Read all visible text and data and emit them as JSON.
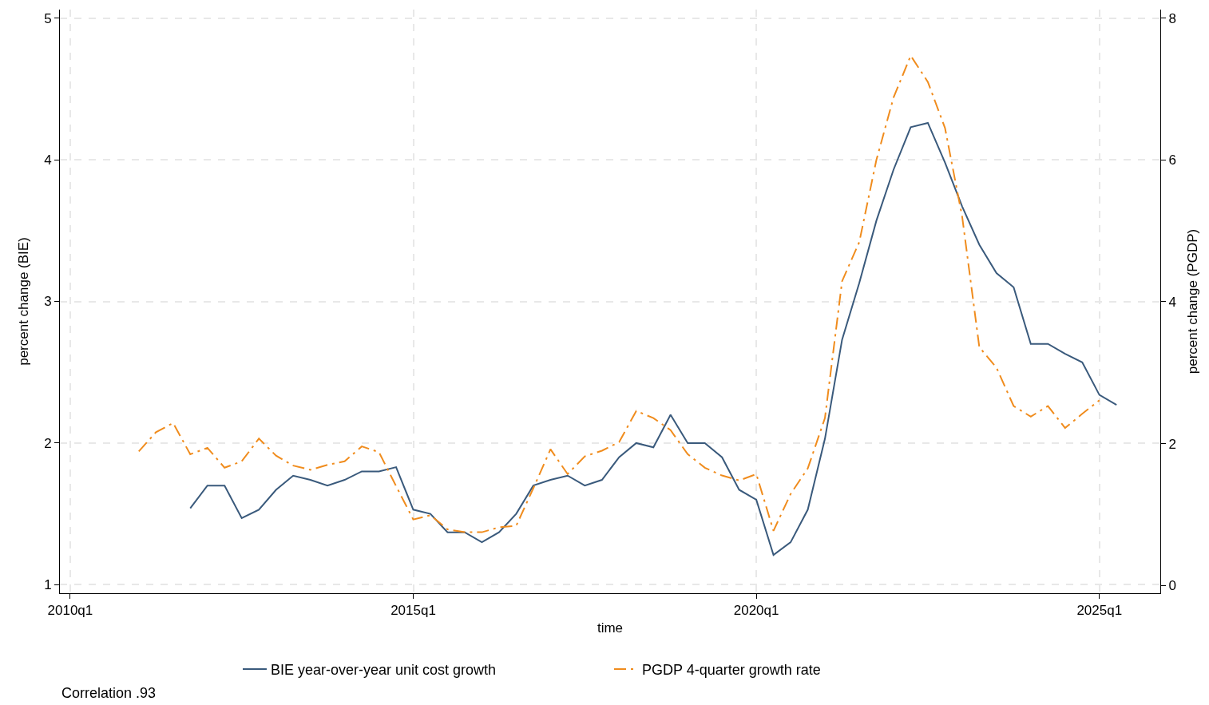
{
  "chart_data": {
    "type": "line",
    "xlabel": "time",
    "ylabel": "percent change (BIE)",
    "y2label": "percent change (PGDP)",
    "annotations": [
      "Correlation .93"
    ],
    "categories": [
      "2010q1",
      null,
      null,
      null,
      null,
      null,
      null,
      null,
      null,
      null,
      null,
      null,
      null,
      null,
      null,
      null,
      null,
      null,
      null,
      null,
      "2015q1",
      null,
      null,
      null,
      null,
      null,
      null,
      null,
      null,
      null,
      null,
      null,
      null,
      null,
      null,
      null,
      null,
      null,
      null,
      null,
      "2020q1",
      null,
      null,
      null,
      null,
      null,
      null,
      null,
      null,
      null,
      null,
      null,
      null,
      null,
      null,
      null,
      null,
      null,
      null,
      null,
      "2025q1",
      null,
      null,
      null
    ],
    "ylim": [
      0.94,
      5.06
    ],
    "yticks": [
      1,
      2,
      3,
      4,
      5
    ],
    "y2lim": [
      -0.11,
      8.12
    ],
    "y2ticks": [
      0,
      2,
      4,
      6,
      8
    ],
    "grid": true,
    "legend": "bottom",
    "series": [
      {
        "name": "BIE year-over-year unit cost growth",
        "color": "#3a5a7c",
        "line_style": "solid",
        "values": [
          null,
          null,
          null,
          null,
          null,
          null,
          null,
          1.54,
          1.7,
          1.7,
          1.47,
          1.53,
          1.67,
          1.77,
          1.74,
          1.7,
          1.74,
          1.8,
          1.8,
          1.83,
          1.53,
          1.5,
          1.37,
          1.37,
          1.3,
          1.37,
          1.5,
          1.7,
          1.74,
          1.77,
          1.7,
          1.74,
          1.9,
          2.0,
          1.97,
          2.2,
          2.0,
          2.0,
          1.9,
          1.67,
          1.6,
          1.21,
          1.3,
          1.53,
          2.03,
          2.73,
          3.13,
          3.57,
          3.93,
          4.23,
          4.26,
          3.98,
          3.67,
          3.4,
          3.2,
          3.1,
          2.7,
          2.7,
          2.63,
          2.57,
          2.34,
          2.27,
          null,
          null
        ]
      },
      {
        "name": "PGDP 4-quarter growth rate",
        "color": "#f08c1d",
        "line_style": "dashdot",
        "axis": "y2",
        "values": [
          null,
          null,
          null,
          null,
          1.89,
          2.16,
          2.29,
          1.85,
          1.94,
          1.66,
          1.75,
          2.07,
          1.83,
          1.69,
          1.63,
          1.7,
          1.75,
          1.96,
          1.88,
          1.4,
          0.93,
          0.99,
          0.79,
          0.75,
          0.75,
          0.82,
          0.84,
          1.37,
          1.92,
          1.57,
          1.82,
          1.9,
          2.02,
          2.46,
          2.36,
          2.19,
          1.85,
          1.66,
          1.55,
          1.48,
          1.57,
          0.77,
          1.29,
          1.65,
          2.36,
          4.29,
          4.84,
          6.0,
          6.88,
          7.47,
          7.1,
          6.45,
          5.2,
          3.36,
          3.07,
          2.53,
          2.38,
          2.53,
          2.22,
          2.42,
          2.61,
          null,
          null,
          null
        ]
      }
    ]
  }
}
